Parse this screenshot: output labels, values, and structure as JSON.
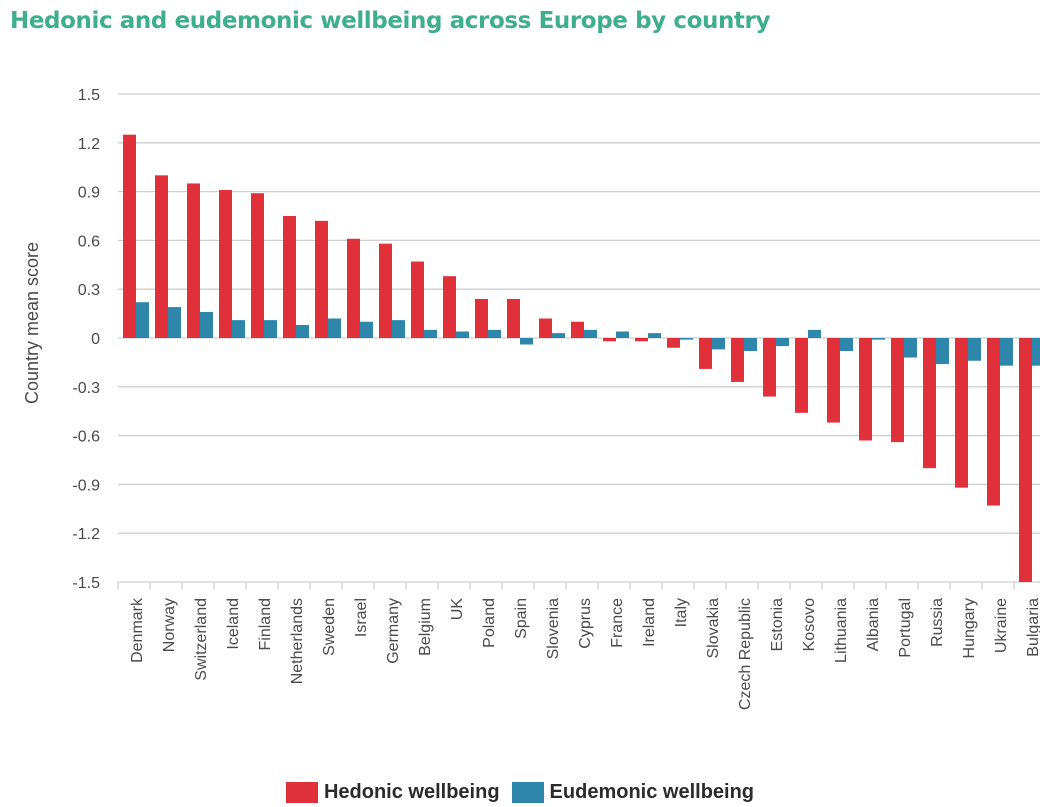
{
  "chart_data": {
    "type": "bar",
    "title": "Hedonic and eudemonic wellbeing across Europe by country",
    "ylabel": "Country mean score",
    "xlabel": "",
    "ylim": [
      -1.5,
      1.5
    ],
    "yticks": [
      1.5,
      1.2,
      0.9,
      0.6,
      0.3,
      0,
      -0.3,
      -0.6,
      -0.9,
      -1.2,
      -1.5
    ],
    "ytick_labels": [
      "1.5",
      "1.2",
      "0.9",
      "0.6",
      "0.3",
      "0",
      "-0.3",
      "-0.6",
      "-0.9",
      "-1.2",
      "-1.5"
    ],
    "grid": true,
    "legend_position": "bottom-center",
    "categories": [
      "Denmark",
      "Norway",
      "Switzerland",
      "Iceland",
      "Finland",
      "Netherlands",
      "Sweden",
      "Israel",
      "Germany",
      "Belgium",
      "UK",
      "Poland",
      "Spain",
      "Slovenia",
      "Cyprus",
      "France",
      "Ireland",
      "Italy",
      "Slovakia",
      "Czech Republic",
      "Estonia",
      "Kosovo",
      "Lithuania",
      "Albania",
      "Portugal",
      "Russia",
      "Hungary",
      "Ukraine",
      "Bulgaria"
    ],
    "series": [
      {
        "name": "Hedonic wellbeing",
        "color": "#e0303a",
        "values": [
          1.25,
          1.0,
          0.95,
          0.91,
          0.89,
          0.75,
          0.72,
          0.61,
          0.58,
          0.47,
          0.38,
          0.24,
          0.24,
          0.12,
          0.1,
          -0.02,
          -0.02,
          -0.06,
          -0.19,
          -0.27,
          -0.36,
          -0.46,
          -0.52,
          -0.63,
          -0.64,
          -0.8,
          -0.92,
          -1.03,
          -1.5
        ]
      },
      {
        "name": "Eudemonic wellbeing",
        "color": "#2e86ab",
        "values": [
          0.22,
          0.19,
          0.16,
          0.11,
          0.11,
          0.08,
          0.12,
          0.1,
          0.11,
          0.05,
          0.04,
          0.05,
          -0.04,
          0.03,
          0.05,
          0.04,
          0.03,
          -0.01,
          -0.07,
          -0.08,
          -0.05,
          0.05,
          -0.08,
          -0.01,
          -0.12,
          -0.16,
          -0.14,
          -0.17,
          -0.17
        ]
      }
    ]
  },
  "colors": {
    "title": "#3fae8c",
    "gridline": "#cfcfcf",
    "axis_text": "#4a4a4a"
  }
}
